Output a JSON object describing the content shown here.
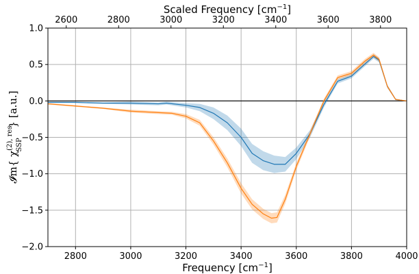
{
  "chart_data": {
    "type": "line",
    "title": "",
    "xlabel": "Frequency [cm",
    "xlabel_sup": "−1",
    "xlabel_tail": "]",
    "top_xlabel": "Scaled Frequency [cm",
    "top_xlabel_sup": "−1",
    "top_xlabel_tail": "]",
    "ylabel": {
      "head": "𝓘m{ χ",
      "sup": "(2), res",
      "sub": "SSP",
      "tail": " } [a.u.]"
    },
    "xlim": [
      2700,
      4000
    ],
    "ylim": [
      -2.0,
      1.0
    ],
    "top_xlim": [
      2530,
      3900
    ],
    "xticks": [
      "2800",
      "3000",
      "3200",
      "3400",
      "3600",
      "3800",
      "4000"
    ],
    "yticks": [
      "1.0",
      "0.5",
      "0.0",
      "−0.5",
      "−1.0",
      "−1.5",
      "−2.0"
    ],
    "top_xticks": [
      "2600",
      "2800",
      "3000",
      "3200",
      "3400",
      "3600",
      "3800"
    ],
    "grid": true,
    "zero_line": true,
    "series": [
      {
        "color": "#1f77b4",
        "band_color": "#1f77b4",
        "x": [
          2700,
          2800,
          2900,
          3000,
          3100,
          3130,
          3200,
          3250,
          3300,
          3350,
          3400,
          3440,
          3480,
          3520,
          3560,
          3600,
          3650,
          3700,
          3750,
          3800,
          3850,
          3880,
          3900,
          3930,
          3960,
          4000
        ],
        "y": [
          -0.02,
          -0.02,
          -0.03,
          -0.03,
          -0.04,
          -0.03,
          -0.06,
          -0.09,
          -0.17,
          -0.3,
          -0.5,
          -0.72,
          -0.82,
          -0.87,
          -0.87,
          -0.72,
          -0.45,
          -0.05,
          0.27,
          0.34,
          0.51,
          0.61,
          0.56,
          0.2,
          0.02,
          0.0
        ],
        "band": [
          0.01,
          0.01,
          0.01,
          0.02,
          0.02,
          0.02,
          0.03,
          0.05,
          0.08,
          0.1,
          0.12,
          0.13,
          0.13,
          0.12,
          0.1,
          0.08,
          0.05,
          0.04,
          0.03,
          0.03,
          0.03,
          0.03,
          0.03,
          0.02,
          0.01,
          0.0
        ]
      },
      {
        "color": "#ff7f0e",
        "band_color": "#ff7f0e",
        "x": [
          2700,
          2800,
          2900,
          3000,
          3100,
          3150,
          3200,
          3250,
          3300,
          3350,
          3400,
          3440,
          3480,
          3510,
          3530,
          3560,
          3600,
          3650,
          3700,
          3750,
          3800,
          3850,
          3880,
          3900,
          3930,
          3960,
          4000
        ],
        "y": [
          -0.04,
          -0.07,
          -0.1,
          -0.14,
          -0.16,
          -0.17,
          -0.21,
          -0.3,
          -0.55,
          -0.85,
          -1.2,
          -1.42,
          -1.55,
          -1.61,
          -1.6,
          -1.35,
          -0.9,
          -0.45,
          0.0,
          0.32,
          0.38,
          0.55,
          0.63,
          0.57,
          0.2,
          0.02,
          0.0
        ],
        "band": [
          0.01,
          0.01,
          0.01,
          0.02,
          0.02,
          0.02,
          0.03,
          0.04,
          0.05,
          0.06,
          0.07,
          0.07,
          0.07,
          0.07,
          0.07,
          0.06,
          0.05,
          0.04,
          0.03,
          0.03,
          0.03,
          0.03,
          0.03,
          0.03,
          0.02,
          0.01,
          0.0
        ]
      }
    ]
  }
}
